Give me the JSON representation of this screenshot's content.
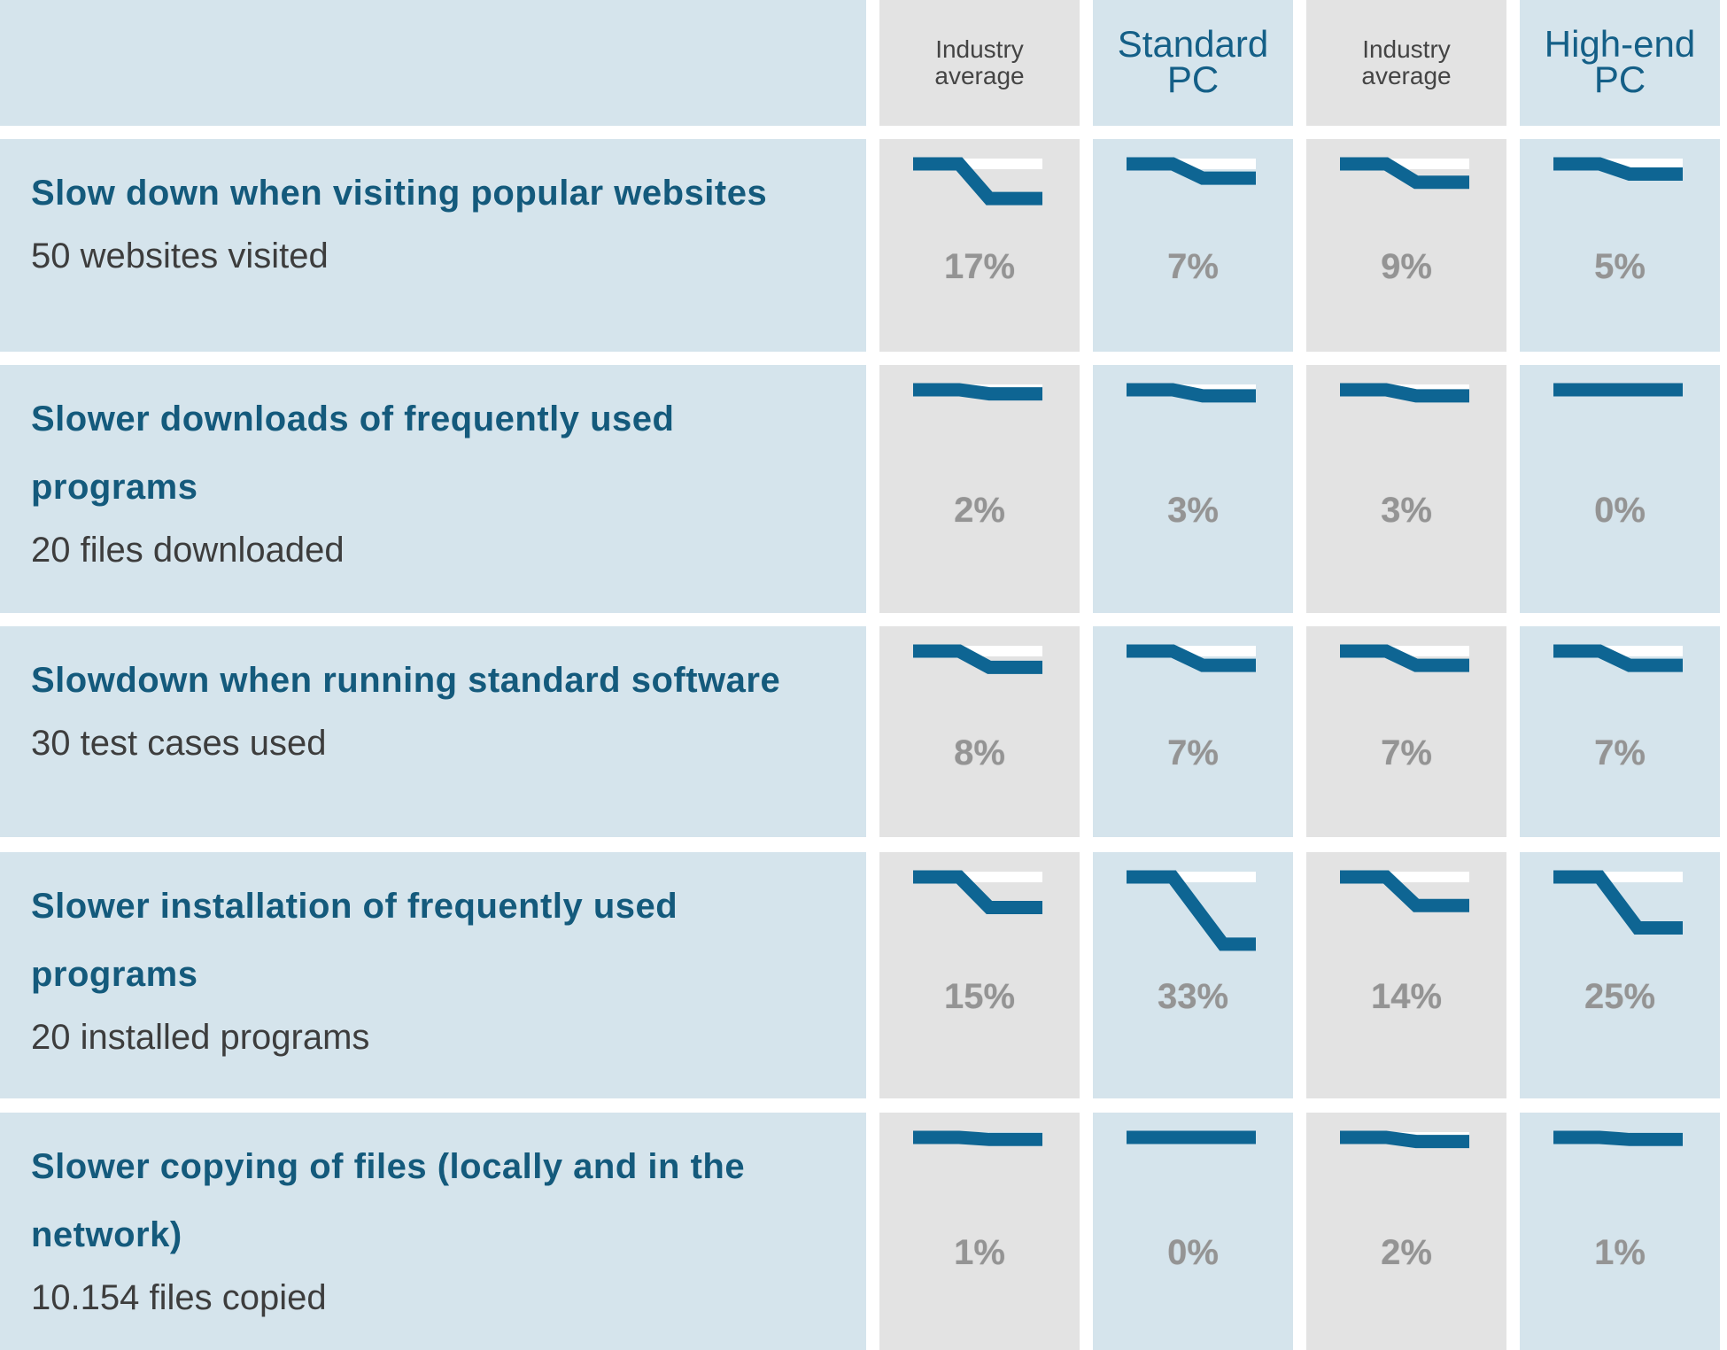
{
  "chart_data": {
    "type": "table",
    "columns": [
      {
        "label_lines": [
          "Industry",
          "average"
        ],
        "style": "small"
      },
      {
        "label_lines": [
          "Standard",
          "PC"
        ],
        "style": "large"
      },
      {
        "label_lines": [
          "Industry",
          "average"
        ],
        "style": "small"
      },
      {
        "label_lines": [
          "High-end",
          "PC"
        ],
        "style": "large"
      }
    ],
    "rows": [
      {
        "title_lines": [
          "Slow down when visiting popular websites"
        ],
        "subtitle": "50 websites visited",
        "values": [
          17,
          7,
          9,
          5
        ],
        "labels": [
          "17%",
          "7%",
          "9%",
          "5%"
        ]
      },
      {
        "title_lines": [
          "Slower downloads of frequently used",
          "programs"
        ],
        "subtitle": "20 files downloaded",
        "values": [
          2,
          3,
          3,
          0
        ],
        "labels": [
          "2%",
          "3%",
          "3%",
          "0%"
        ]
      },
      {
        "title_lines": [
          "Slowdown when running standard software"
        ],
        "subtitle": "30 test cases used",
        "values": [
          8,
          7,
          7,
          7
        ],
        "labels": [
          "8%",
          "7%",
          "7%",
          "7%"
        ]
      },
      {
        "title_lines": [
          "Slower installation of frequently used",
          "programs"
        ],
        "subtitle": "20 installed programs",
        "values": [
          15,
          33,
          14,
          25
        ],
        "labels": [
          "15%",
          "33%",
          "14%",
          "25%"
        ]
      },
      {
        "title_lines": [
          "Slower copying of files (locally and in the",
          "network)"
        ],
        "subtitle": "10.154 files copied",
        "values": [
          1,
          0,
          2,
          1
        ],
        "labels": [
          "1%",
          "0%",
          "2%",
          "1%"
        ]
      }
    ]
  },
  "colors": {
    "row_background": "#d5e4ec",
    "alt_column_background": "#e3e3e3",
    "line": "#0e6593",
    "title_text": "#145a7c",
    "subtitle_text": "#3d3d3d",
    "value_text": "#949494"
  }
}
